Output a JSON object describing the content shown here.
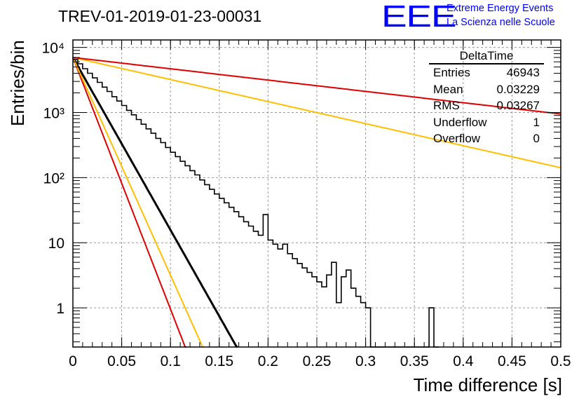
{
  "header": {
    "title": "TREV-01-2019-01-23-00031",
    "logo_text": "EEE",
    "brand_line1": "Extreme Energy Events",
    "brand_line2": "La Scienza nelle Scuole"
  },
  "stats_box": {
    "name": "DeltaTime",
    "rows": [
      {
        "label": "Entries",
        "value": "46943"
      },
      {
        "label": "Mean",
        "value": "0.03229"
      },
      {
        "label": "RMS",
        "value": "0.03267"
      },
      {
        "label": "Underflow",
        "value": "1"
      },
      {
        "label": "Overflow",
        "value": "0"
      }
    ]
  },
  "chart_data": {
    "type": "histogram",
    "xlabel": "Time difference [s]",
    "ylabel": "Entries/bin",
    "xlim": [
      0,
      0.5
    ],
    "ylim": [
      0.25,
      13000
    ],
    "yscale": "log",
    "grid": true,
    "x_ticks": [
      "0",
      "0.05",
      "0.1",
      "0.15",
      "0.2",
      "0.25",
      "0.3",
      "0.35",
      "0.4",
      "0.45",
      "0.5"
    ],
    "y_ticks": [
      {
        "value": 1,
        "label": "1"
      },
      {
        "value": 10,
        "label": "10"
      },
      {
        "value": 100,
        "label": "10²"
      },
      {
        "value": 1000,
        "label": "10³"
      },
      {
        "value": 10000,
        "label": "10⁴"
      }
    ],
    "histogram": {
      "bin_width": 0.005,
      "values": [
        6500,
        5600,
        4700,
        4000,
        3400,
        2900,
        2450,
        2100,
        1750,
        1500,
        1280,
        1080,
        920,
        780,
        660,
        560,
        480,
        400,
        345,
        290,
        245,
        210,
        178,
        152,
        128,
        110,
        92,
        78,
        66,
        56,
        48,
        41,
        35,
        30,
        25,
        21,
        18,
        15,
        13,
        27,
        11,
        9.5,
        8,
        9.5,
        6.8,
        5.7,
        4.8,
        4.1,
        3.5,
        3,
        2.5,
        2.1,
        3.2,
        5,
        1.2,
        3,
        3.8,
        2,
        1.5,
        1.2,
        1,
        0,
        0,
        0,
        0,
        0,
        0,
        0,
        0,
        0,
        0,
        0,
        0,
        1,
        0
      ]
    },
    "fits": [
      {
        "color": "#000000",
        "y0": 7000,
        "slope": -61
      },
      {
        "color": "#e00000",
        "y0": 7000,
        "slope": -89
      },
      {
        "color": "#ffbf00",
        "y0": 7000,
        "slope": -77
      },
      {
        "color": "#ffbf00",
        "y0": 7000,
        "slope": -7.8
      },
      {
        "color": "#e00000",
        "y0": 7000,
        "slope": -4
      }
    ]
  }
}
